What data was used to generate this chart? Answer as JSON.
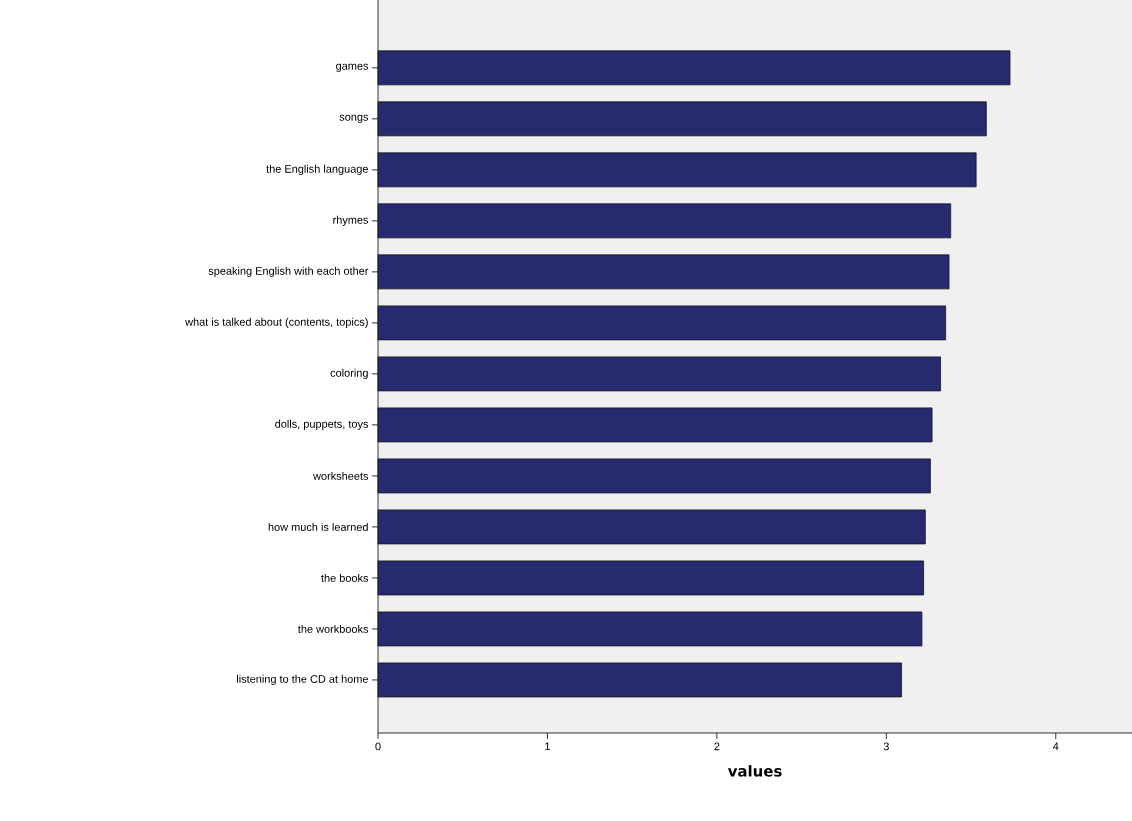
{
  "chart_data": {
    "type": "bar",
    "orientation": "horizontal",
    "xlabel": "values",
    "categories": [
      "games",
      "songs",
      "the English language",
      "rhymes",
      "speaking English with each other",
      "what is talked about (contents, topics)",
      "coloring",
      "dolls, puppets, toys",
      "worksheets",
      "how much is learned",
      "the books",
      "the workbooks",
      "listening to the CD at home"
    ],
    "values": [
      3.73,
      3.59,
      3.53,
      3.38,
      3.37,
      3.35,
      3.32,
      3.27,
      3.26,
      3.23,
      3.22,
      3.21,
      3.09
    ],
    "color": "#262a6e",
    "xlim": [
      0,
      4.45
    ],
    "xticks": [
      0,
      1,
      2,
      3,
      4
    ],
    "grid": false
  }
}
